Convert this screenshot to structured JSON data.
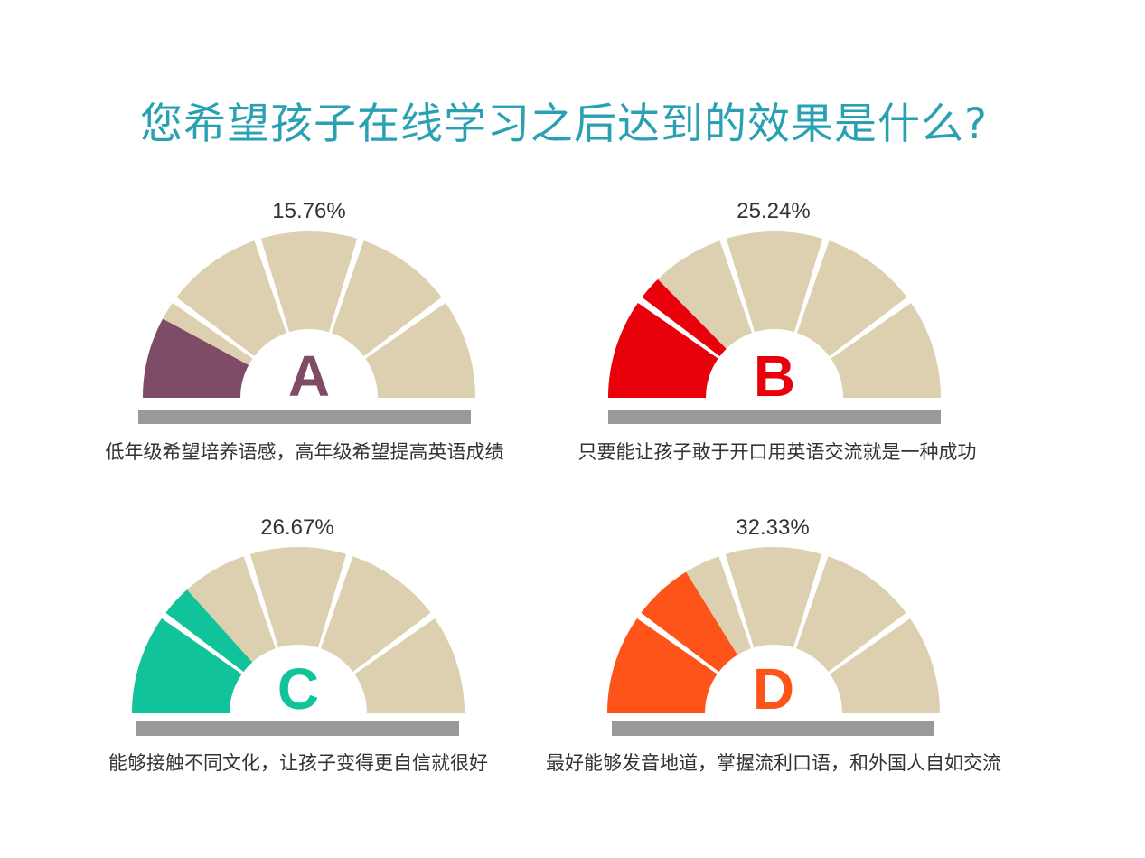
{
  "title": "您希望孩子在线学习之后达到的效果是什么?",
  "colors": {
    "title": "#2aa1b3",
    "inactive": "#ddd0b0",
    "baseline": "#999999"
  },
  "chart_data": [
    {
      "type": "gauge",
      "letter": "A",
      "percent_label": "15.76%",
      "value": 15.76,
      "max": 100,
      "segments": 5,
      "color": "#7f4c68",
      "caption": "低年级希望培养语感，高年级希望提高英语成绩"
    },
    {
      "type": "gauge",
      "letter": "B",
      "percent_label": "25.24%",
      "value": 25.24,
      "max": 100,
      "segments": 5,
      "color": "#e8000b",
      "caption": "只要能让孩子敢于开口用英语交流就是一种成功"
    },
    {
      "type": "gauge",
      "letter": "C",
      "percent_label": "26.67%",
      "value": 26.67,
      "max": 100,
      "segments": 5,
      "color": "#11c39a",
      "caption": "能够接触不同文化，让孩子变得更自信就很好"
    },
    {
      "type": "gauge",
      "letter": "D",
      "percent_label": "32.33%",
      "value": 32.33,
      "max": 100,
      "segments": 5,
      "color": "#fe5319",
      "caption": "最好能够发音地道，掌握流利口语，和外国人自如交流"
    }
  ]
}
